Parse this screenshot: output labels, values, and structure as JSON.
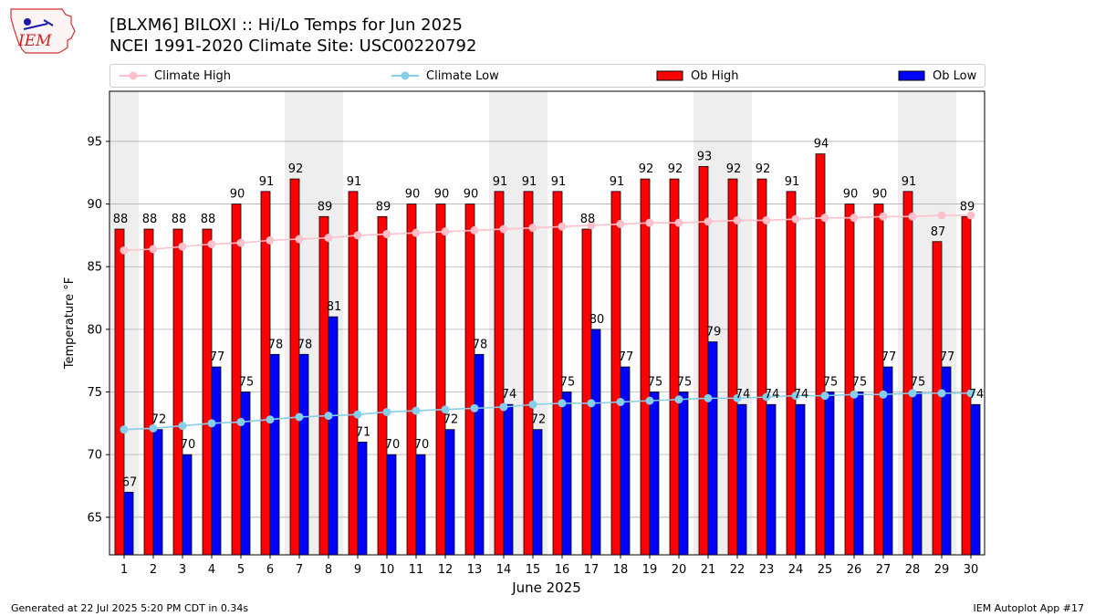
{
  "header": {
    "title_line1": "[BLXM6] BILOXI :: Hi/Lo Temps for Jun 2025",
    "title_line2": "NCEI 1991-2020 Climate Site: USC00220792",
    "logo_text": "IEM"
  },
  "legend": {
    "items": [
      {
        "label": "Climate High",
        "kind": "line",
        "color": "#ffc0cb"
      },
      {
        "label": "Climate Low",
        "kind": "line",
        "color": "#87ceeb"
      },
      {
        "label": "Ob High",
        "kind": "bar",
        "color": "#ff0000"
      },
      {
        "label": "Ob Low",
        "kind": "bar",
        "color": "#0000ff"
      }
    ]
  },
  "footer": {
    "left": "Generated at 22 Jul 2025 5:20 PM CDT in 0.34s",
    "right": "IEM Autoplot App #17"
  },
  "chart_data": {
    "type": "bar",
    "title": "[BLXM6] BILOXI :: Hi/Lo Temps for Jun 2025",
    "subtitle": "NCEI 1991-2020 Climate Site: USC00220792",
    "xlabel": "June 2025",
    "ylabel": "Temperature °F",
    "ylim": [
      62,
      99
    ],
    "yticks": [
      65,
      70,
      75,
      80,
      85,
      90,
      95
    ],
    "grid": "horizontal",
    "legend_position": "top",
    "categories": [
      "1",
      "2",
      "3",
      "4",
      "5",
      "6",
      "7",
      "8",
      "9",
      "10",
      "11",
      "12",
      "13",
      "14",
      "15",
      "16",
      "17",
      "18",
      "19",
      "20",
      "21",
      "22",
      "23",
      "24",
      "25",
      "26",
      "27",
      "28",
      "29",
      "30"
    ],
    "weekend_days": [
      1,
      7,
      8,
      14,
      15,
      21,
      22,
      28,
      29
    ],
    "series": [
      {
        "name": "Ob High",
        "type": "bar",
        "color": "#ff0000",
        "values": [
          88,
          88,
          88,
          88,
          90,
          91,
          92,
          89,
          91,
          89,
          90,
          90,
          90,
          91,
          91,
          91,
          88,
          91,
          92,
          92,
          93,
          92,
          92,
          91,
          94,
          90,
          90,
          91,
          87,
          89
        ]
      },
      {
        "name": "Ob Low",
        "type": "bar",
        "color": "#0000ff",
        "values": [
          67,
          72,
          70,
          77,
          75,
          78,
          78,
          81,
          71,
          70,
          70,
          72,
          78,
          74,
          72,
          75,
          80,
          77,
          75,
          75,
          79,
          74,
          74,
          74,
          75,
          75,
          77,
          75,
          77,
          74
        ]
      },
      {
        "name": "Climate High",
        "type": "line",
        "color": "#ffc0cb",
        "values": [
          86.3,
          86.4,
          86.6,
          86.8,
          86.9,
          87.1,
          87.2,
          87.3,
          87.5,
          87.6,
          87.7,
          87.8,
          87.9,
          88.0,
          88.1,
          88.2,
          88.3,
          88.4,
          88.5,
          88.5,
          88.6,
          88.7,
          88.7,
          88.8,
          88.9,
          88.9,
          89.0,
          89.0,
          89.1,
          89.1
        ]
      },
      {
        "name": "Climate Low",
        "type": "line",
        "color": "#87ceeb",
        "values": [
          72.0,
          72.1,
          72.3,
          72.5,
          72.6,
          72.8,
          73.0,
          73.1,
          73.2,
          73.4,
          73.5,
          73.6,
          73.7,
          73.8,
          74.0,
          74.1,
          74.1,
          74.2,
          74.3,
          74.4,
          74.5,
          74.5,
          74.6,
          74.7,
          74.7,
          74.8,
          74.8,
          74.9,
          74.9,
          74.9
        ]
      }
    ]
  }
}
